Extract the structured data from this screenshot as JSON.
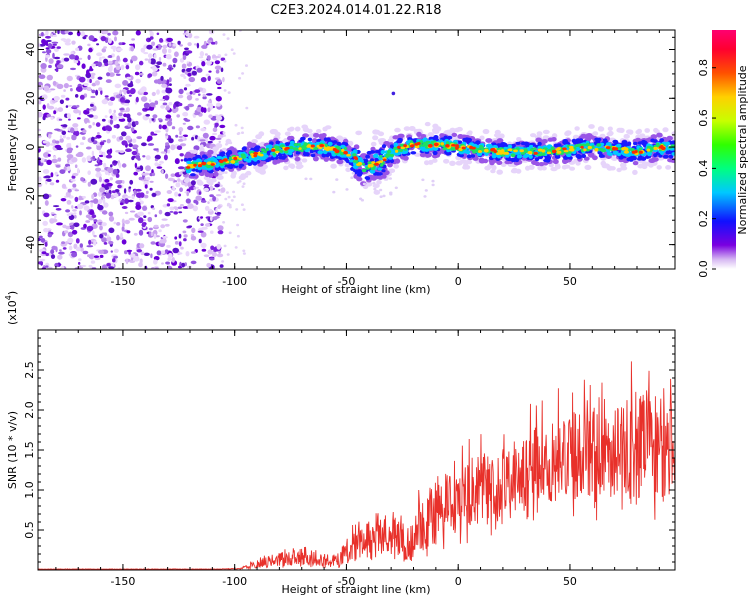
{
  "page_title": "C2E3.2024.014.01.22.R18",
  "chart_data": [
    {
      "type": "heatmap",
      "xlabel": "Height of straight line (km)",
      "ylabel": "Frequency (Hz)",
      "xlim": [
        -188,
        97
      ],
      "ylim": [
        -50,
        48
      ],
      "x_ticks": [
        -150,
        -100,
        -50,
        0,
        50
      ],
      "y_ticks": [
        -40,
        -20,
        0,
        20,
        40
      ],
      "noise_region_x": [
        -188,
        -105
      ],
      "echo_trace": [
        {
          "x": -122,
          "y": -8
        },
        {
          "x": -110,
          "y": -7
        },
        {
          "x": -100,
          "y": -5
        },
        {
          "x": -90,
          "y": -3
        },
        {
          "x": -80,
          "y": -1
        },
        {
          "x": -70,
          "y": 0
        },
        {
          "x": -60,
          "y": 0
        },
        {
          "x": -50,
          "y": -2
        },
        {
          "x": -42,
          "y": -8
        },
        {
          "x": -35,
          "y": -6
        },
        {
          "x": -28,
          "y": -1
        },
        {
          "x": -20,
          "y": 1
        },
        {
          "x": -10,
          "y": 1
        },
        {
          "x": 0,
          "y": 0
        },
        {
          "x": 10,
          "y": -1
        },
        {
          "x": 20,
          "y": -2
        },
        {
          "x": 30,
          "y": -2
        },
        {
          "x": 40,
          "y": -2
        },
        {
          "x": 50,
          "y": -1
        },
        {
          "x": 60,
          "y": 0
        },
        {
          "x": 70,
          "y": -1
        },
        {
          "x": 80,
          "y": -2
        },
        {
          "x": 90,
          "y": 0
        },
        {
          "x": 97,
          "y": -1
        }
      ],
      "isolated_point": {
        "x": -29,
        "y": 22
      }
    },
    {
      "type": "colorbar",
      "label": "Normalized spectral amplitude",
      "range": [
        0,
        0.95
      ],
      "ticks": [
        "0.0",
        "0.2",
        "0.4",
        "0.6",
        "0.8"
      ]
    },
    {
      "type": "line",
      "color": "#e8302a",
      "xlabel": "Height of straight line (km)",
      "ylabel": "SNR (10 * v/v)",
      "scale_label": "(x10",
      "scale_exponent": "4",
      "xlim": [
        -188,
        97
      ],
      "ylim": [
        0,
        3.0
      ],
      "x_ticks": [
        -150,
        -100,
        -50,
        0,
        50
      ],
      "y_ticks": [
        "0.5",
        "1.0",
        "1.5",
        "2.0",
        "2.5"
      ],
      "envelope": [
        {
          "x": -188,
          "base": 0.01,
          "amp": 0.005
        },
        {
          "x": -110,
          "base": 0.01,
          "amp": 0.005
        },
        {
          "x": -98,
          "base": 0.015,
          "amp": 0.01
        },
        {
          "x": -85,
          "base": 0.08,
          "amp": 0.15
        },
        {
          "x": -75,
          "base": 0.12,
          "amp": 0.2
        },
        {
          "x": -62,
          "base": 0.1,
          "amp": 0.15
        },
        {
          "x": -55,
          "base": 0.08,
          "amp": 0.2
        },
        {
          "x": -45,
          "base": 0.3,
          "amp": 0.5
        },
        {
          "x": -35,
          "base": 0.35,
          "amp": 0.6
        },
        {
          "x": -22,
          "base": 0.25,
          "amp": 0.45
        },
        {
          "x": -12,
          "base": 0.55,
          "amp": 0.8
        },
        {
          "x": 0,
          "base": 0.75,
          "amp": 0.8
        },
        {
          "x": 20,
          "base": 0.95,
          "amp": 1.0
        },
        {
          "x": 40,
          "base": 1.2,
          "amp": 1.0
        },
        {
          "x": 60,
          "base": 1.35,
          "amp": 1.3
        },
        {
          "x": 80,
          "base": 1.3,
          "amp": 1.4
        },
        {
          "x": 97,
          "base": 1.3,
          "amp": 1.3
        }
      ]
    }
  ]
}
